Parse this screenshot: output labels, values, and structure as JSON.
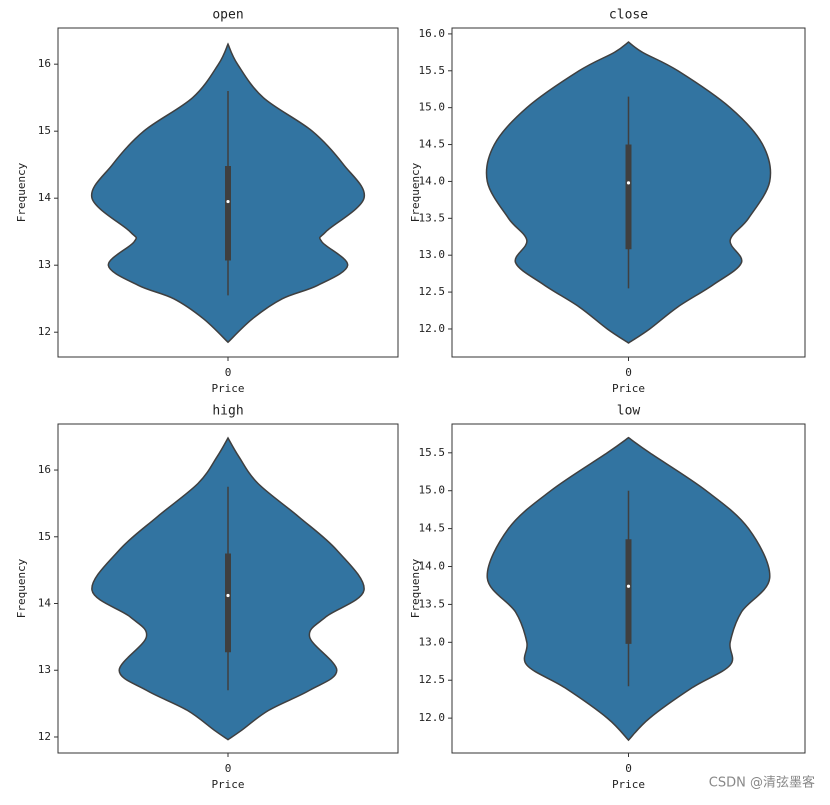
{
  "chart_data": [
    {
      "type": "violin",
      "title": "open",
      "xlabel": "Price",
      "ylabel": "Frequency",
      "categories": [
        "0"
      ],
      "ylim": [
        11.63,
        16.54
      ],
      "yticks": [
        12,
        13,
        14,
        15,
        16
      ],
      "color": "#3274a1",
      "violin": {
        "y": [
          16.3,
          16.0,
          15.5,
          15.0,
          14.5,
          14.0,
          13.5,
          13.35,
          13.0,
          12.7,
          12.5,
          12.2,
          11.85
        ],
        "width": [
          0,
          0.07,
          0.26,
          0.62,
          0.85,
          1.0,
          0.72,
          0.69,
          0.88,
          0.66,
          0.4,
          0.18,
          0
        ]
      },
      "box": {
        "whisker_low": 12.55,
        "q1": 13.07,
        "median": 13.95,
        "q3": 14.48,
        "whisker_high": 15.6
      }
    },
    {
      "type": "violin",
      "title": "close",
      "xlabel": "Price",
      "ylabel": "Frequency",
      "categories": [
        "0"
      ],
      "ylim": [
        11.62,
        16.08
      ],
      "yticks": [
        {
          "value": 12,
          "label": "12.0"
        },
        12.5,
        {
          "value": 13,
          "label": "13.0"
        },
        13.5,
        {
          "value": 14,
          "label": "14.0"
        },
        14.5,
        {
          "value": 15,
          "label": "15.0"
        },
        15.5,
        {
          "value": 16,
          "label": "16.0"
        }
      ],
      "color": "#3274a1",
      "violin": {
        "y": [
          15.89,
          15.75,
          15.5,
          15.0,
          14.5,
          14.0,
          13.5,
          13.2,
          12.9,
          12.6,
          12.3,
          12.0,
          11.81
        ],
        "width": [
          0,
          0.1,
          0.35,
          0.72,
          0.95,
          1.0,
          0.85,
          0.72,
          0.8,
          0.6,
          0.35,
          0.15,
          0
        ]
      },
      "box": {
        "whisker_low": 12.55,
        "q1": 13.08,
        "median": 13.98,
        "q3": 14.5,
        "whisker_high": 15.15
      }
    },
    {
      "type": "violin",
      "title": "high",
      "xlabel": "Price",
      "ylabel": "Frequency",
      "categories": [
        "0"
      ],
      "ylim": [
        11.76,
        16.69
      ],
      "yticks": [
        12,
        13,
        14,
        15,
        16
      ],
      "color": "#3274a1",
      "violin": {
        "y": [
          16.48,
          16.2,
          15.8,
          15.3,
          14.8,
          14.2,
          13.8,
          13.5,
          13.0,
          12.7,
          12.4,
          12.1,
          11.96
        ],
        "width": [
          0,
          0.08,
          0.22,
          0.52,
          0.8,
          1.0,
          0.72,
          0.6,
          0.8,
          0.6,
          0.3,
          0.1,
          0
        ]
      },
      "box": {
        "whisker_low": 12.7,
        "q1": 13.27,
        "median": 14.12,
        "q3": 14.75,
        "whisker_high": 15.75
      }
    },
    {
      "type": "violin",
      "title": "low",
      "xlabel": "Price",
      "ylabel": "Frequency",
      "categories": [
        "0"
      ],
      "ylim": [
        11.54,
        15.88
      ],
      "yticks": [
        {
          "value": 12,
          "label": "12.0"
        },
        12.5,
        {
          "value": 13,
          "label": "13.0"
        },
        13.5,
        {
          "value": 14,
          "label": "14.0"
        },
        14.5,
        {
          "value": 15,
          "label": "15.0"
        },
        15.5
      ],
      "color": "#3274a1",
      "violin": {
        "y": [
          15.7,
          15.5,
          15.0,
          14.5,
          13.85,
          13.4,
          13.0,
          12.7,
          12.4,
          12.0,
          11.71
        ],
        "width": [
          0,
          0.15,
          0.55,
          0.85,
          1.0,
          0.8,
          0.72,
          0.72,
          0.45,
          0.15,
          0
        ]
      },
      "box": {
        "whisker_low": 12.42,
        "q1": 12.98,
        "median": 13.74,
        "q3": 14.36,
        "whisker_high": 15.0
      }
    }
  ],
  "watermark": "CSDN @清弦墨客"
}
